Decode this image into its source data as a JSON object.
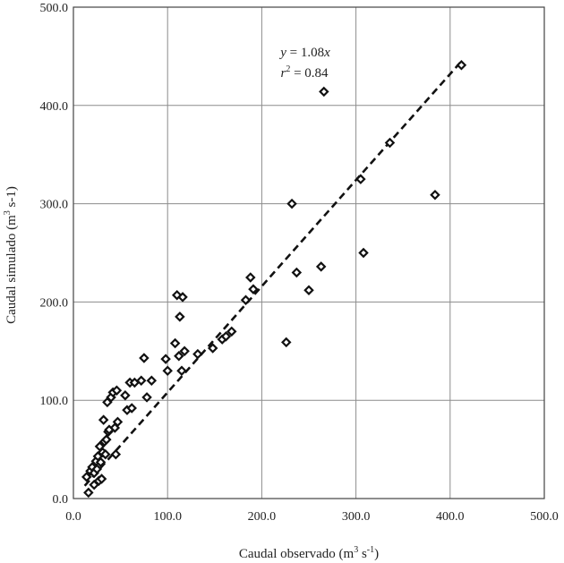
{
  "chart_data": {
    "type": "scatter",
    "xlabel_main": "Caudal observado (m",
    "xlabel_sup": "3",
    "xlabel_tail": " s",
    "xlabel_sup2": "-1",
    "xlabel_end": ")",
    "ylabel_main": "Caudal simulado (m",
    "ylabel_sup": "3",
    "ylabel_tail": "  s-1)",
    "xlim": [
      0,
      500
    ],
    "ylim": [
      0,
      500
    ],
    "x_ticks": [
      "0.0",
      "100.0",
      "200.0",
      "300.0",
      "400.0",
      "500.0"
    ],
    "y_ticks": [
      "0.0",
      "100.0",
      "200.0",
      "300.0",
      "400.0",
      "500.0"
    ],
    "grid": true,
    "annotation": {
      "eq_y": "y",
      "eq_rest": " = 1.08",
      "eq_x": "x",
      "r2_r": "r",
      "r2_sup": "2",
      "r2_rest": " = 0.84"
    },
    "fit": {
      "slope": 1.08,
      "x_start": 12,
      "x_end": 412
    },
    "points": [
      [
        14,
        22
      ],
      [
        16,
        6
      ],
      [
        18,
        28
      ],
      [
        20,
        32
      ],
      [
        22,
        26
      ],
      [
        22,
        14
      ],
      [
        24,
        38
      ],
      [
        25,
        30
      ],
      [
        26,
        43
      ],
      [
        27,
        18
      ],
      [
        28,
        53
      ],
      [
        29,
        37
      ],
      [
        30,
        20
      ],
      [
        31,
        47
      ],
      [
        32,
        80
      ],
      [
        33,
        58
      ],
      [
        34,
        45
      ],
      [
        35,
        60
      ],
      [
        36,
        98
      ],
      [
        37,
        68
      ],
      [
        38,
        70
      ],
      [
        40,
        103
      ],
      [
        42,
        108
      ],
      [
        44,
        72
      ],
      [
        45,
        45
      ],
      [
        46,
        110
      ],
      [
        47,
        78
      ],
      [
        55,
        105
      ],
      [
        57,
        90
      ],
      [
        60,
        118
      ],
      [
        62,
        92
      ],
      [
        65,
        118
      ],
      [
        72,
        120
      ],
      [
        75,
        143
      ],
      [
        78,
        103
      ],
      [
        83,
        120
      ],
      [
        98,
        142
      ],
      [
        100,
        130
      ],
      [
        108,
        158
      ],
      [
        110,
        207
      ],
      [
        112,
        145
      ],
      [
        113,
        185
      ],
      [
        115,
        130
      ],
      [
        116,
        205
      ],
      [
        118,
        150
      ],
      [
        132,
        147
      ],
      [
        148,
        153
      ],
      [
        158,
        162
      ],
      [
        162,
        165
      ],
      [
        168,
        170
      ],
      [
        183,
        202
      ],
      [
        188,
        225
      ],
      [
        191,
        213
      ],
      [
        226,
        159
      ],
      [
        232,
        300
      ],
      [
        237,
        230
      ],
      [
        250,
        212
      ],
      [
        263,
        236
      ],
      [
        266,
        414
      ],
      [
        305,
        325
      ],
      [
        308,
        250
      ],
      [
        336,
        362
      ],
      [
        384,
        309
      ],
      [
        412,
        441
      ]
    ]
  }
}
